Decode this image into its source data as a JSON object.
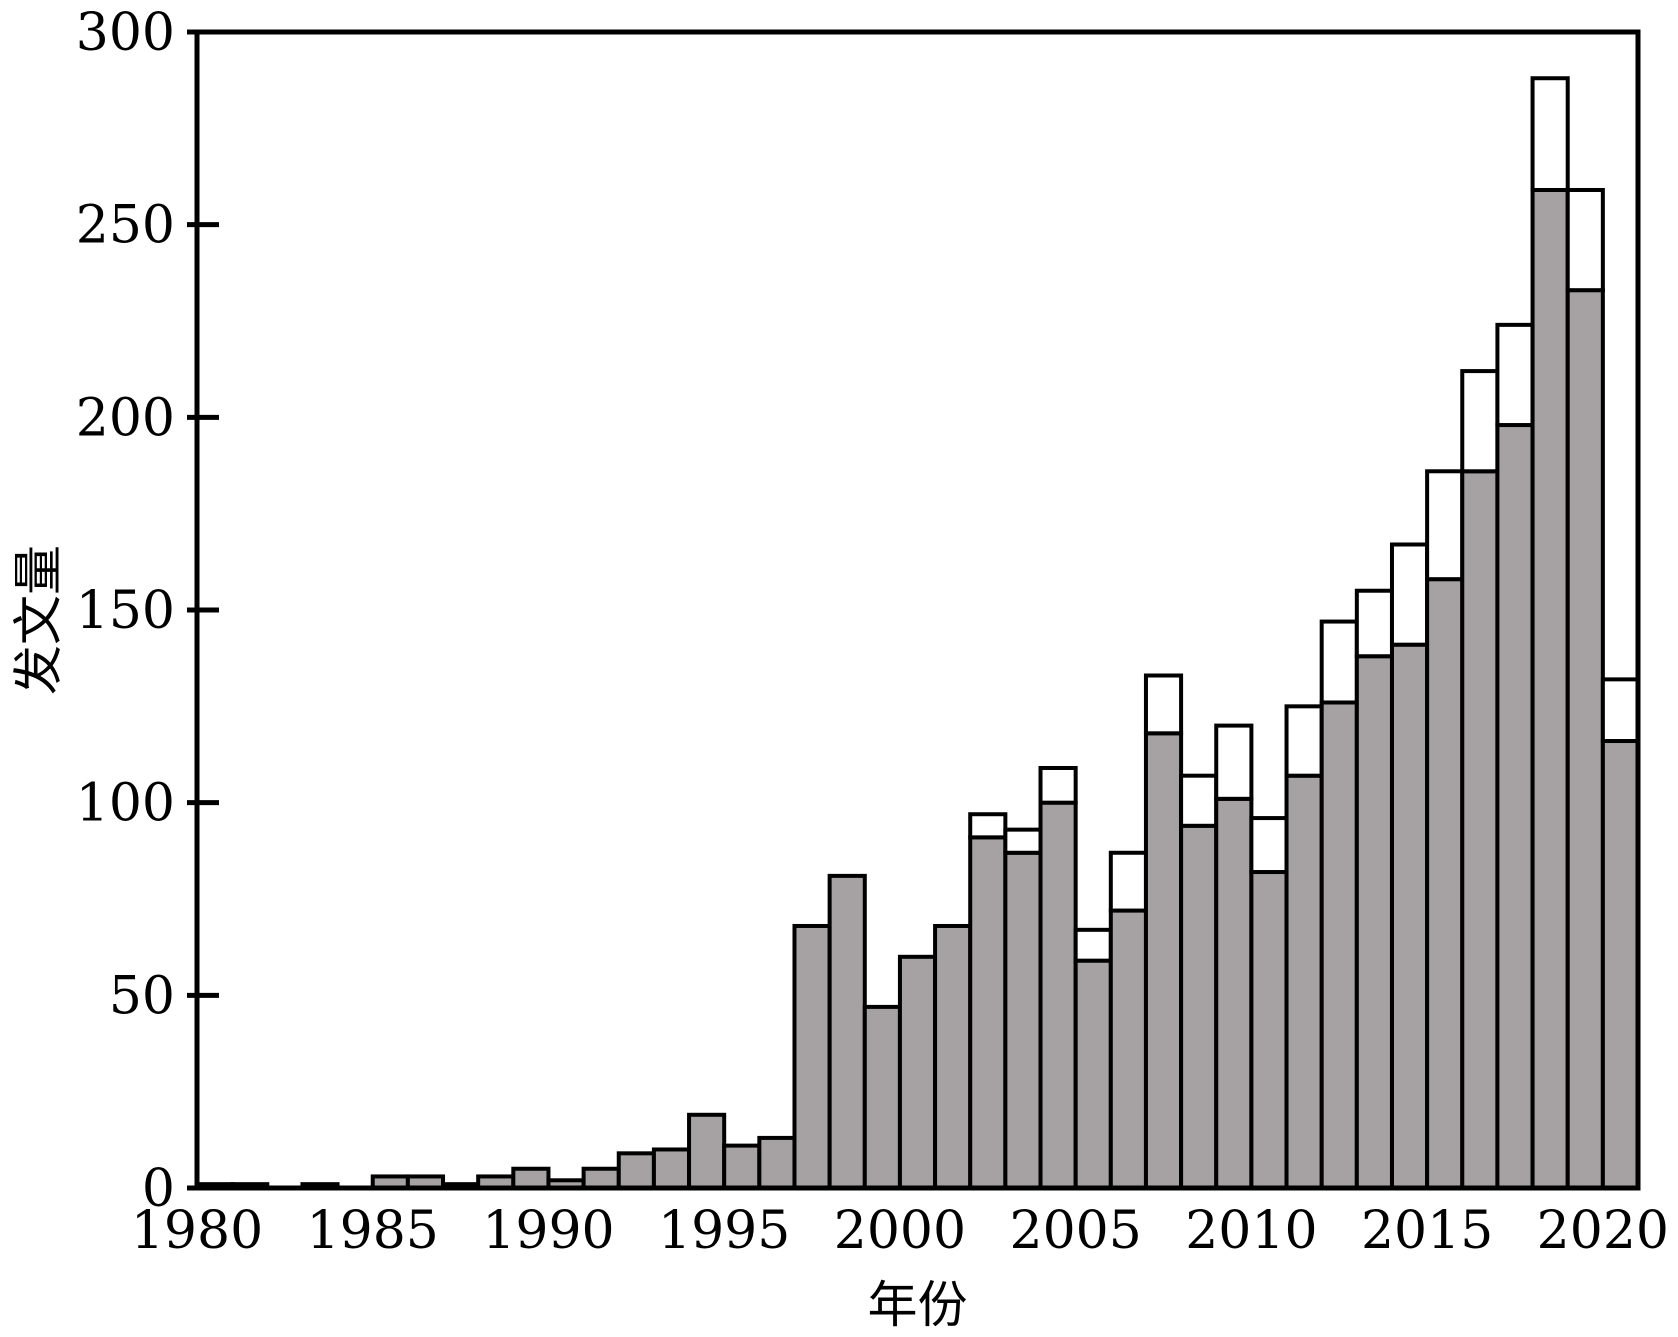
{
  "chart_data": {
    "type": "bar",
    "title": "",
    "xlabel": "年份",
    "ylabel": "发文量",
    "xlim": [
      1980,
      2021
    ],
    "ylim": [
      0,
      300
    ],
    "xticks": [
      "1980",
      "1985",
      "1990",
      "1995",
      "2000",
      "2005",
      "2010",
      "2015",
      "2020"
    ],
    "yticks": [
      "0",
      "50",
      "100",
      "150",
      "200",
      "250",
      "300"
    ],
    "grid": false,
    "legend": "none",
    "stacked": true,
    "categories": [
      1980,
      1981,
      1982,
      1983,
      1984,
      1985,
      1986,
      1987,
      1988,
      1989,
      1990,
      1991,
      1992,
      1993,
      1994,
      1995,
      1996,
      1997,
      1998,
      1999,
      2000,
      2001,
      2002,
      2003,
      2004,
      2005,
      2006,
      2007,
      2008,
      2009,
      2010,
      2011,
      2012,
      2013,
      2014,
      2015,
      2016,
      2017,
      2018,
      2019,
      2020
    ],
    "series": [
      {
        "color": "#a6a2a3",
        "values": [
          1,
          1,
          0,
          1,
          0,
          3,
          3,
          1,
          3,
          5,
          2,
          5,
          9,
          10,
          19,
          11,
          13,
          68,
          81,
          47,
          60,
          68,
          91,
          87,
          100,
          59,
          72,
          118,
          94,
          101,
          82,
          107,
          126,
          138,
          141,
          158,
          186,
          198,
          259,
          233,
          116
        ]
      },
      {
        "color": "#ffffff",
        "values": [
          0,
          0,
          0,
          0,
          0,
          0,
          0,
          0,
          0,
          0,
          0,
          0,
          0,
          0,
          0,
          0,
          0,
          0,
          0,
          0,
          0,
          0,
          6,
          6,
          9,
          8,
          15,
          15,
          13,
          19,
          14,
          18,
          21,
          17,
          26,
          28,
          26,
          26,
          29,
          26,
          16
        ]
      }
    ]
  }
}
